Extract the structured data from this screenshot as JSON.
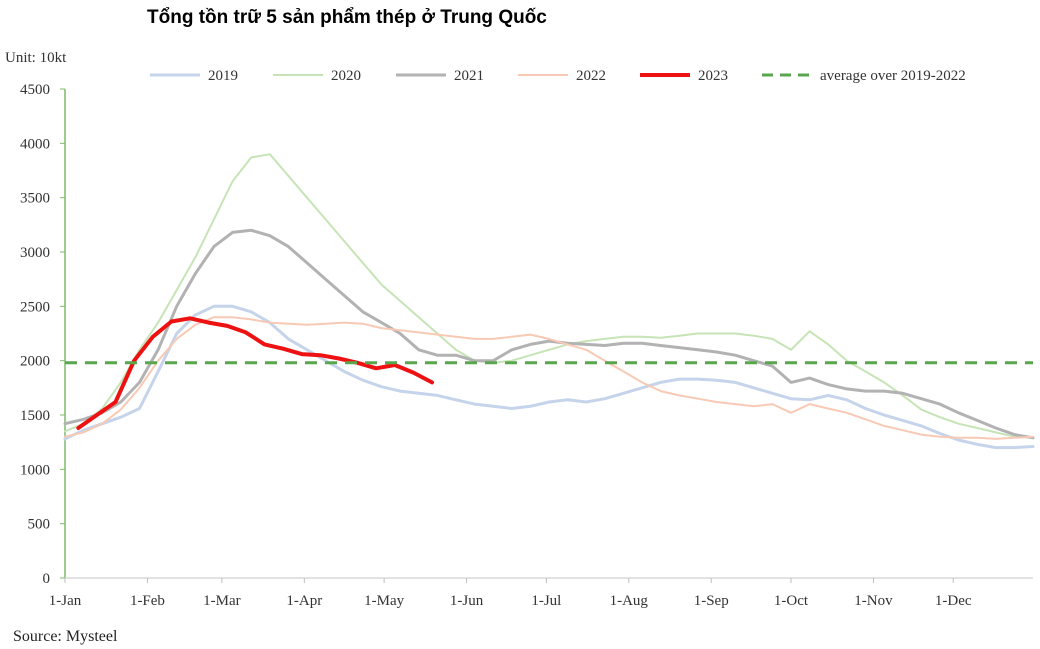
{
  "chart_data": {
    "type": "line",
    "title": "Tổng tồn trữ 5 sản phẩm thép ở Trung Quốc",
    "unit_label": "Unit: 10kt",
    "source": "Source: Mysteel",
    "x_tick_labels": [
      "1-Jan",
      "1-Feb",
      "1-Mar",
      "1-Apr",
      "1-May",
      "1-Jun",
      "1-Jul",
      "1-Aug",
      "1-Sep",
      "1-Oct",
      "1-Nov",
      "1-Dec"
    ],
    "x_ticks_day": [
      1,
      32,
      60,
      91,
      121,
      152,
      182,
      213,
      244,
      274,
      305,
      335
    ],
    "xlim_day": [
      1,
      365
    ],
    "y_ticks": [
      0,
      500,
      1000,
      1500,
      2000,
      2500,
      3000,
      3500,
      4000,
      4500
    ],
    "ylim": [
      0,
      4500
    ],
    "grid": false,
    "legend_position": "top",
    "series": [
      {
        "name": "2019",
        "color": "#c5d4ea",
        "width": 3,
        "dash": "",
        "x": [
          1,
          8,
          15,
          22,
          29,
          36,
          43,
          50,
          57,
          64,
          71,
          78,
          85,
          92,
          99,
          106,
          113,
          120,
          127,
          134,
          141,
          148,
          155,
          162,
          169,
          176,
          183,
          190,
          197,
          204,
          211,
          218,
          225,
          232,
          239,
          246,
          253,
          260,
          267,
          274,
          281,
          288,
          295,
          302,
          309,
          316,
          323,
          330,
          337,
          344,
          351,
          358,
          365
        ],
        "y": [
          1280,
          1360,
          1420,
          1480,
          1560,
          1900,
          2250,
          2420,
          2500,
          2500,
          2450,
          2350,
          2200,
          2100,
          2000,
          1900,
          1820,
          1760,
          1720,
          1700,
          1680,
          1640,
          1600,
          1580,
          1560,
          1580,
          1620,
          1640,
          1620,
          1650,
          1700,
          1750,
          1800,
          1830,
          1830,
          1820,
          1800,
          1750,
          1700,
          1650,
          1640,
          1680,
          1640,
          1560,
          1500,
          1450,
          1400,
          1330,
          1270,
          1230,
          1200,
          1200,
          1210
        ]
      },
      {
        "name": "2020",
        "color": "#c6e4b6",
        "width": 2,
        "dash": "",
        "x": [
          1,
          8,
          15,
          22,
          29,
          36,
          43,
          50,
          57,
          64,
          71,
          78,
          85,
          92,
          99,
          106,
          113,
          120,
          127,
          134,
          141,
          148,
          155,
          162,
          169,
          176,
          183,
          190,
          197,
          204,
          211,
          218,
          225,
          232,
          239,
          246,
          253,
          260,
          267,
          274,
          281,
          288,
          295,
          302,
          309,
          316,
          323,
          330,
          337,
          344,
          351,
          358,
          365
        ],
        "y": [
          1350,
          1420,
          1560,
          1800,
          2100,
          2350,
          2650,
          2950,
          3300,
          3650,
          3870,
          3900,
          3700,
          3500,
          3300,
          3100,
          2900,
          2700,
          2550,
          2400,
          2250,
          2100,
          2000,
          1980,
          2000,
          2050,
          2100,
          2150,
          2180,
          2200,
          2220,
          2220,
          2210,
          2230,
          2250,
          2250,
          2250,
          2230,
          2200,
          2100,
          2270,
          2150,
          2000,
          1900,
          1800,
          1680,
          1550,
          1480,
          1420,
          1380,
          1340,
          1300,
          1290
        ]
      },
      {
        "name": "2021",
        "color": "#b2b2b2",
        "width": 3,
        "dash": "",
        "x": [
          1,
          8,
          15,
          22,
          29,
          36,
          43,
          50,
          57,
          64,
          71,
          78,
          85,
          92,
          99,
          106,
          113,
          120,
          127,
          134,
          141,
          148,
          155,
          162,
          169,
          176,
          183,
          190,
          197,
          204,
          211,
          218,
          225,
          232,
          239,
          246,
          253,
          260,
          267,
          274,
          281,
          288,
          295,
          302,
          309,
          316,
          323,
          330,
          337,
          344,
          351,
          358,
          365
        ],
        "y": [
          1420,
          1460,
          1520,
          1620,
          1800,
          2100,
          2500,
          2800,
          3050,
          3180,
          3200,
          3150,
          3050,
          2900,
          2750,
          2600,
          2450,
          2350,
          2250,
          2100,
          2050,
          2050,
          2000,
          2000,
          2100,
          2150,
          2180,
          2160,
          2150,
          2140,
          2160,
          2160,
          2140,
          2120,
          2100,
          2080,
          2050,
          2000,
          1950,
          1800,
          1840,
          1780,
          1740,
          1720,
          1720,
          1700,
          1650,
          1600,
          1520,
          1450,
          1380,
          1320,
          1290
        ]
      },
      {
        "name": "2022",
        "color": "#f8c9b4",
        "width": 2,
        "dash": "",
        "x": [
          1,
          8,
          15,
          22,
          29,
          36,
          43,
          50,
          57,
          64,
          71,
          78,
          85,
          92,
          99,
          106,
          113,
          120,
          127,
          134,
          141,
          148,
          155,
          162,
          169,
          176,
          183,
          190,
          197,
          204,
          211,
          218,
          225,
          232,
          239,
          246,
          253,
          260,
          267,
          274,
          281,
          288,
          295,
          302,
          309,
          316,
          323,
          330,
          337,
          344,
          351,
          358,
          365
        ],
        "y": [
          1300,
          1340,
          1420,
          1550,
          1750,
          2000,
          2200,
          2330,
          2400,
          2400,
          2380,
          2350,
          2340,
          2330,
          2340,
          2350,
          2340,
          2300,
          2280,
          2260,
          2240,
          2220,
          2200,
          2200,
          2220,
          2240,
          2200,
          2150,
          2100,
          2000,
          1900,
          1800,
          1720,
          1680,
          1650,
          1620,
          1600,
          1580,
          1600,
          1520,
          1600,
          1560,
          1520,
          1460,
          1400,
          1360,
          1320,
          1300,
          1290,
          1290,
          1280,
          1290,
          1300
        ]
      },
      {
        "name": "2023",
        "color": "#ee1111",
        "width": 4,
        "dash": "",
        "x": [
          6,
          13,
          20,
          27,
          34,
          41,
          48,
          55,
          62,
          69,
          76,
          83,
          90,
          97,
          104,
          111,
          118,
          125,
          132,
          139
        ],
        "y": [
          1380,
          1500,
          1620,
          2000,
          2220,
          2360,
          2390,
          2350,
          2320,
          2260,
          2150,
          2110,
          2060,
          2050,
          2020,
          1980,
          1930,
          1960,
          1890,
          1800
        ]
      },
      {
        "name": "average over 2019-2022",
        "color": "#5aa64f",
        "width": 3,
        "dash": "12,8",
        "x": [
          1,
          365
        ],
        "y": [
          1980,
          1980
        ]
      }
    ]
  }
}
